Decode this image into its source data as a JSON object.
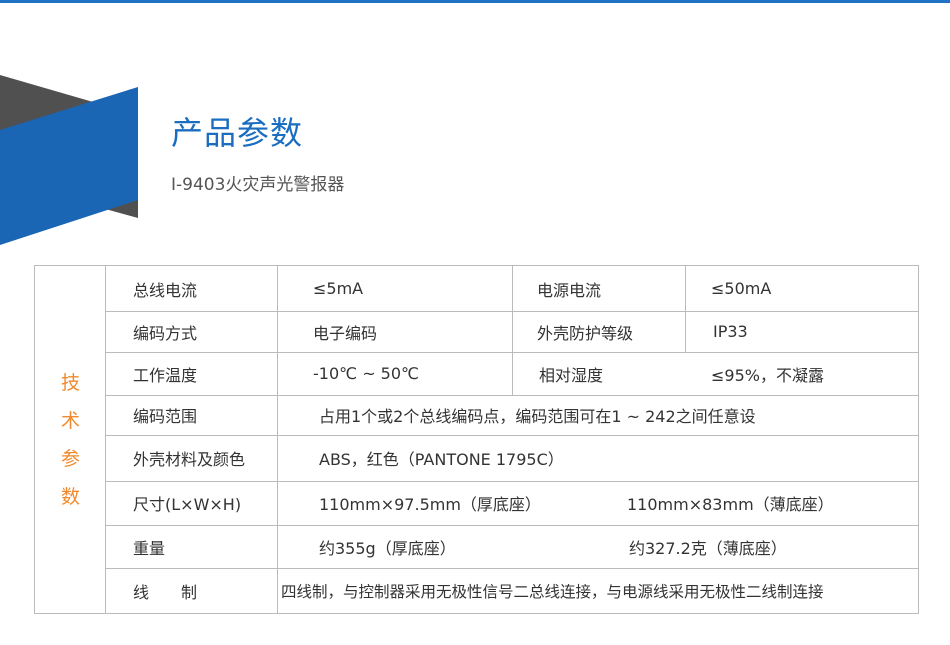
{
  "header": {
    "title": "产品参数",
    "subtitle": "I-9403火灾声光警报器"
  },
  "colors": {
    "accent": "#1a6dc0",
    "side_label": "#f08a2c",
    "dark_shape": "#505050"
  },
  "table": {
    "side_label": [
      "技",
      "术",
      "参",
      "数"
    ],
    "rows": [
      {
        "label": "总线电流",
        "value": "≤5mA",
        "label2": "电源电流",
        "value2": "≤50mA"
      },
      {
        "label": "编码方式",
        "value": "电子编码",
        "label2": "外壳防护等级",
        "value2": "IP33"
      },
      {
        "label": "工作温度",
        "value": "-10℃ ~ 50℃",
        "label2": "相对湿度",
        "value2": "≤95%，不凝露"
      },
      {
        "label": "编码范围",
        "value": "占用1个或2个总线编码点，编码范围可在1 ~ 242之间任意设"
      },
      {
        "label": "外壳材料及颜色",
        "value": "ABS，红色（PANTONE 1795C）"
      },
      {
        "label": "尺寸(L×W×H)",
        "value": "110mm×97.5mm（厚底座）",
        "value2": "110mm×83mm（薄底座）"
      },
      {
        "label": "重量",
        "value": "约355g（厚底座）",
        "value2": "约327.2克（薄底座）"
      },
      {
        "label": "线　　制",
        "value": "四线制，与控制器采用无极性信号二总线连接，与电源线采用无极性二线制连接"
      }
    ]
  }
}
